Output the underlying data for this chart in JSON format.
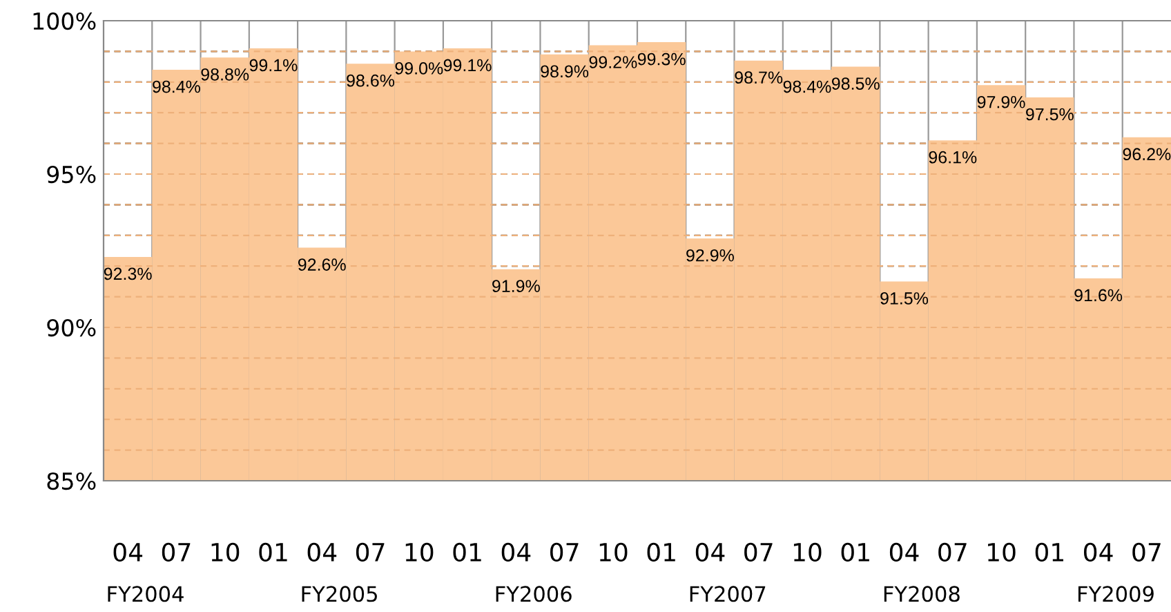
{
  "chart_data": {
    "type": "bar",
    "categories": [
      "04\nFY2004",
      "07",
      "10",
      "01",
      "04\nFY2005",
      "07",
      "10",
      "01",
      "04\nFY2006",
      "07",
      "10",
      "01",
      "04\nFY2007",
      "07",
      "10",
      "01",
      "04\nFY2008",
      "07",
      "10",
      "01",
      "04\nFY2009",
      "07"
    ],
    "values": [
      92.3,
      98.4,
      98.8,
      99.1,
      92.6,
      98.6,
      99.0,
      99.1,
      91.9,
      98.9,
      99.2,
      99.3,
      92.9,
      98.7,
      98.4,
      98.5,
      91.5,
      96.1,
      97.9,
      97.5,
      91.6,
      96.2
    ],
    "value_labels": [
      "92.3%",
      "98.4%",
      "98.8%",
      "99.1%",
      "92.6%",
      "98.6%",
      "99.0%",
      "99.1%",
      "91.9%",
      "98.9%",
      "99.2%",
      "99.3%",
      "92.9%",
      "98.7%",
      "98.4%",
      "98.5%",
      "91.5%",
      "96.1%",
      "97.9%",
      "97.5%",
      "91.6%",
      "96.2%"
    ],
    "color": "#fbc898",
    "ylim": [
      85,
      100
    ],
    "yticks": [
      {
        "value": 85,
        "label": "85%"
      },
      {
        "value": 86,
        "label": null
      },
      {
        "value": 87,
        "label": null
      },
      {
        "value": 88,
        "label": null
      },
      {
        "value": 89,
        "label": null
      },
      {
        "value": 90,
        "label": "90%"
      },
      {
        "value": 91,
        "label": null
      },
      {
        "value": 92,
        "label": null
      },
      {
        "value": 93,
        "label": null
      },
      {
        "value": 94,
        "label": null
      },
      {
        "value": 95,
        "label": "95%"
      },
      {
        "value": 96,
        "label": null
      },
      {
        "value": 97,
        "label": null
      },
      {
        "value": 98,
        "label": null
      },
      {
        "value": 99,
        "label": null
      },
      {
        "value": 100,
        "label": "100%"
      }
    ],
    "grid": true,
    "line_style": "dashed"
  }
}
